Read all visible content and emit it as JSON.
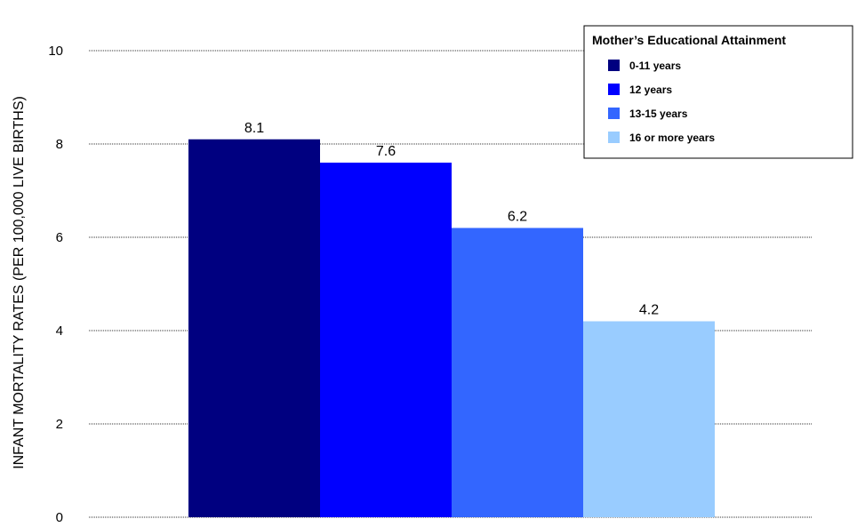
{
  "chart_data": {
    "type": "bar",
    "title": "",
    "xlabel": "",
    "ylabel": "INFANT MORTALITY RATES (PER 100,000 LIVE BIRTHS)",
    "ylim": [
      0,
      10
    ],
    "yticks": [
      0,
      2,
      4,
      6,
      8,
      10
    ],
    "grid": true,
    "legend_placement": "top-right",
    "legend_title": "Mother’s Educational Attainment",
    "series": [
      {
        "name": "0-11 years",
        "value": 8.1,
        "label": "8.1",
        "color": "#000080"
      },
      {
        "name": "12 years",
        "value": 7.6,
        "label": "7.6",
        "color": "#0000ff"
      },
      {
        "name": "13-15 years",
        "value": 6.2,
        "label": "6.2",
        "color": "#3366ff"
      },
      {
        "name": "16 or more years",
        "value": 4.2,
        "label": "4.2",
        "color": "#99ccff"
      }
    ]
  }
}
